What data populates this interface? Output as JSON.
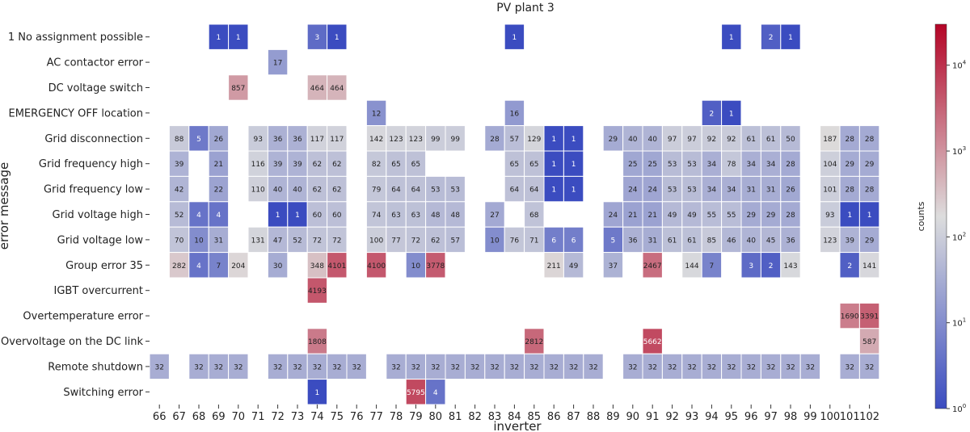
{
  "chart_data": {
    "type": "heatmap",
    "title": "PV plant 3",
    "xlabel": "inverter",
    "ylabel": "error message",
    "colorbar": {
      "label": "counts",
      "scale": "log",
      "range": [
        1,
        30000
      ],
      "ticks": [
        {
          "value": 1,
          "base": "10",
          "exp": "0"
        },
        {
          "value": 10,
          "base": "10",
          "exp": "1"
        },
        {
          "value": 100,
          "base": "10",
          "exp": "2"
        },
        {
          "value": 1000,
          "base": "10",
          "exp": "3"
        },
        {
          "value": 10000,
          "base": "10",
          "exp": "4"
        }
      ],
      "colormap": "coolwarm",
      "colors": [
        "#3b4cc0",
        "#dddddd",
        "#b40426"
      ]
    },
    "x_categories": [
      "66",
      "67",
      "68",
      "69",
      "70",
      "71",
      "72",
      "73",
      "74",
      "75",
      "76",
      "77",
      "78",
      "79",
      "80",
      "81",
      "82",
      "83",
      "84",
      "85",
      "86",
      "87",
      "88",
      "89",
      "90",
      "91",
      "92",
      "93",
      "94",
      "95",
      "96",
      "97",
      "98",
      "99",
      "100",
      "101",
      "102"
    ],
    "y_categories": [
      "1 No assignment possible",
      "AC contactor error",
      "DC voltage switch",
      "EMERGENCY OFF location",
      "Grid disconnection",
      "Grid frequency high",
      "Grid frequency low",
      "Grid voltage high",
      "Grid voltage low",
      "Group error 35",
      "IGBT overcurrent",
      "Overtemperature error",
      "Overvoltage on the DC link",
      "Remote shutdown",
      "Switching error"
    ],
    "values": [
      [
        null,
        null,
        null,
        1,
        1,
        null,
        null,
        null,
        3,
        1,
        null,
        null,
        null,
        null,
        null,
        null,
        null,
        null,
        1,
        null,
        null,
        null,
        null,
        null,
        null,
        null,
        null,
        null,
        null,
        1,
        null,
        2,
        1,
        null,
        null,
        null,
        null
      ],
      [
        null,
        null,
        null,
        null,
        null,
        null,
        17,
        null,
        null,
        null,
        null,
        null,
        null,
        null,
        null,
        null,
        null,
        null,
        null,
        null,
        null,
        null,
        null,
        null,
        null,
        null,
        null,
        null,
        null,
        null,
        null,
        null,
        null,
        null,
        null,
        null,
        null
      ],
      [
        null,
        null,
        null,
        null,
        857,
        null,
        null,
        null,
        464,
        464,
        null,
        null,
        null,
        null,
        null,
        null,
        null,
        null,
        null,
        null,
        null,
        null,
        null,
        null,
        null,
        null,
        null,
        null,
        null,
        null,
        null,
        null,
        null,
        null,
        null,
        null,
        null
      ],
      [
        null,
        null,
        null,
        null,
        null,
        null,
        null,
        null,
        null,
        null,
        null,
        12,
        null,
        null,
        null,
        null,
        null,
        null,
        16,
        null,
        null,
        null,
        null,
        null,
        null,
        null,
        null,
        null,
        2,
        1,
        null,
        null,
        null,
        null,
        null,
        null,
        null
      ],
      [
        null,
        88,
        5,
        26,
        null,
        93,
        36,
        36,
        117,
        117,
        null,
        142,
        123,
        123,
        99,
        99,
        null,
        28,
        57,
        129,
        1,
        1,
        null,
        29,
        40,
        40,
        97,
        97,
        92,
        92,
        61,
        61,
        50,
        null,
        187,
        28,
        28
      ],
      [
        null,
        39,
        null,
        21,
        null,
        116,
        39,
        39,
        62,
        62,
        null,
        82,
        65,
        65,
        null,
        null,
        null,
        null,
        65,
        65,
        1,
        1,
        null,
        null,
        25,
        25,
        53,
        53,
        34,
        78,
        34,
        34,
        28,
        null,
        104,
        29,
        29
      ],
      [
        null,
        42,
        null,
        22,
        null,
        110,
        40,
        40,
        62,
        62,
        null,
        79,
        64,
        64,
        53,
        53,
        null,
        null,
        64,
        64,
        1,
        1,
        null,
        null,
        24,
        24,
        53,
        53,
        34,
        34,
        31,
        31,
        26,
        null,
        101,
        28,
        28
      ],
      [
        null,
        52,
        4,
        4,
        null,
        null,
        1,
        1,
        60,
        60,
        null,
        74,
        63,
        63,
        48,
        48,
        null,
        27,
        null,
        68,
        null,
        null,
        null,
        24,
        21,
        21,
        49,
        49,
        55,
        55,
        29,
        29,
        28,
        null,
        93,
        1,
        1
      ],
      [
        null,
        70,
        10,
        31,
        null,
        131,
        47,
        52,
        72,
        72,
        null,
        100,
        77,
        72,
        62,
        57,
        null,
        10,
        76,
        71,
        6,
        6,
        null,
        5,
        36,
        31,
        61,
        61,
        85,
        46,
        40,
        45,
        36,
        null,
        123,
        39,
        29
      ],
      [
        null,
        282,
        4,
        7,
        204,
        null,
        30,
        null,
        348,
        4101,
        null,
        4100,
        null,
        10,
        3778,
        null,
        null,
        null,
        null,
        null,
        211,
        49,
        null,
        37,
        null,
        2467,
        null,
        144,
        7,
        null,
        3,
        2,
        143,
        null,
        null,
        2,
        141
      ],
      [
        null,
        null,
        null,
        null,
        null,
        null,
        null,
        null,
        4193,
        null,
        null,
        null,
        null,
        null,
        null,
        null,
        null,
        null,
        null,
        null,
        null,
        null,
        null,
        null,
        null,
        null,
        null,
        null,
        null,
        null,
        null,
        null,
        null,
        null,
        null,
        null,
        null
      ],
      [
        null,
        null,
        null,
        null,
        null,
        null,
        null,
        null,
        null,
        null,
        null,
        null,
        null,
        null,
        null,
        null,
        null,
        null,
        null,
        null,
        null,
        null,
        null,
        null,
        null,
        null,
        null,
        null,
        null,
        null,
        null,
        null,
        null,
        null,
        null,
        1690,
        3391
      ],
      [
        null,
        null,
        null,
        null,
        null,
        null,
        null,
        null,
        1808,
        null,
        null,
        null,
        null,
        null,
        null,
        null,
        null,
        null,
        null,
        2812,
        null,
        null,
        null,
        null,
        null,
        5662,
        null,
        null,
        null,
        null,
        null,
        null,
        null,
        null,
        null,
        null,
        587
      ],
      [
        32,
        null,
        32,
        32,
        32,
        null,
        32,
        32,
        32,
        32,
        32,
        null,
        32,
        32,
        32,
        32,
        32,
        32,
        32,
        32,
        32,
        32,
        32,
        null,
        32,
        32,
        32,
        32,
        32,
        32,
        32,
        32,
        32,
        32,
        null,
        32,
        32
      ],
      [
        null,
        null,
        null,
        null,
        null,
        null,
        null,
        null,
        1,
        null,
        null,
        null,
        null,
        5795,
        4,
        null,
        null,
        null,
        null,
        null,
        null,
        null,
        null,
        null,
        null,
        null,
        null,
        null,
        null,
        null,
        null,
        null,
        null,
        null,
        null,
        null,
        null
      ]
    ],
    "grid": false,
    "legend": "colorbar-right"
  }
}
